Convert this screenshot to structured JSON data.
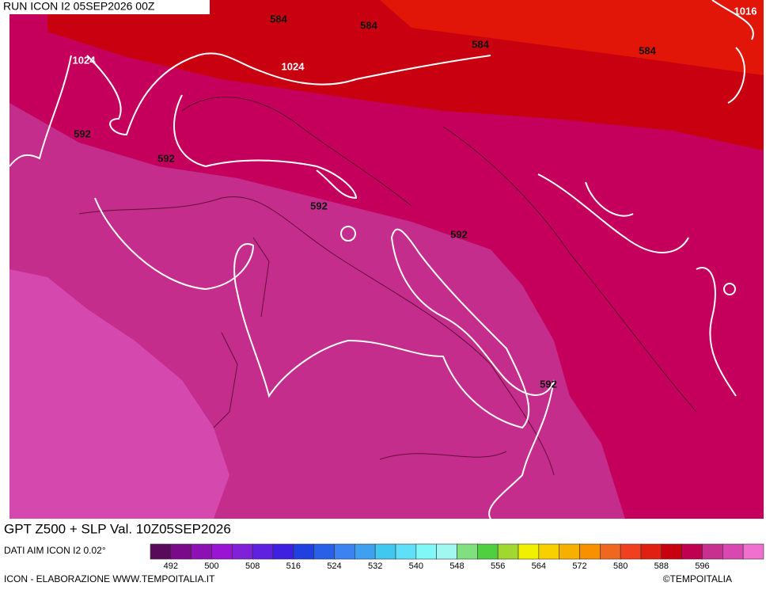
{
  "header": {
    "run": "RUN ICON I2 05SEP2026 00Z"
  },
  "contour_labels": [
    "584",
    "584",
    "584",
    "584",
    "1016",
    "1024",
    "1024",
    "592",
    "592",
    "592",
    "592",
    "592"
  ],
  "footer": {
    "product": "GPT Z500 + SLP Val. 10Z05SEP2026",
    "source": "DATI AIM ICON I2 0.02°",
    "credit": "ICON - ELABORAZIONE WWW.TEMPOITALIA.IT",
    "copyright": "©TEMPOITALIA"
  },
  "color_scale": {
    "colors": [
      "#5a0a5a",
      "#7a0a8a",
      "#8c10b4",
      "#9a14d4",
      "#8020d8",
      "#6020e0",
      "#4020e0",
      "#2040e0",
      "#2860e8",
      "#3c82f0",
      "#40a0f0",
      "#40c8f0",
      "#60e0f8",
      "#80f8f8",
      "#a0f8f0",
      "#80e080",
      "#50d040",
      "#a0d830",
      "#f0f000",
      "#f8d000",
      "#f8b000",
      "#f89000",
      "#f06820",
      "#f04020",
      "#e02010",
      "#c80010",
      "#c00050",
      "#c83090",
      "#d848b0",
      "#f070d0"
    ],
    "ticks": [
      492,
      500,
      508,
      516,
      524,
      532,
      540,
      548,
      556,
      564,
      572,
      580,
      588,
      596
    ]
  }
}
